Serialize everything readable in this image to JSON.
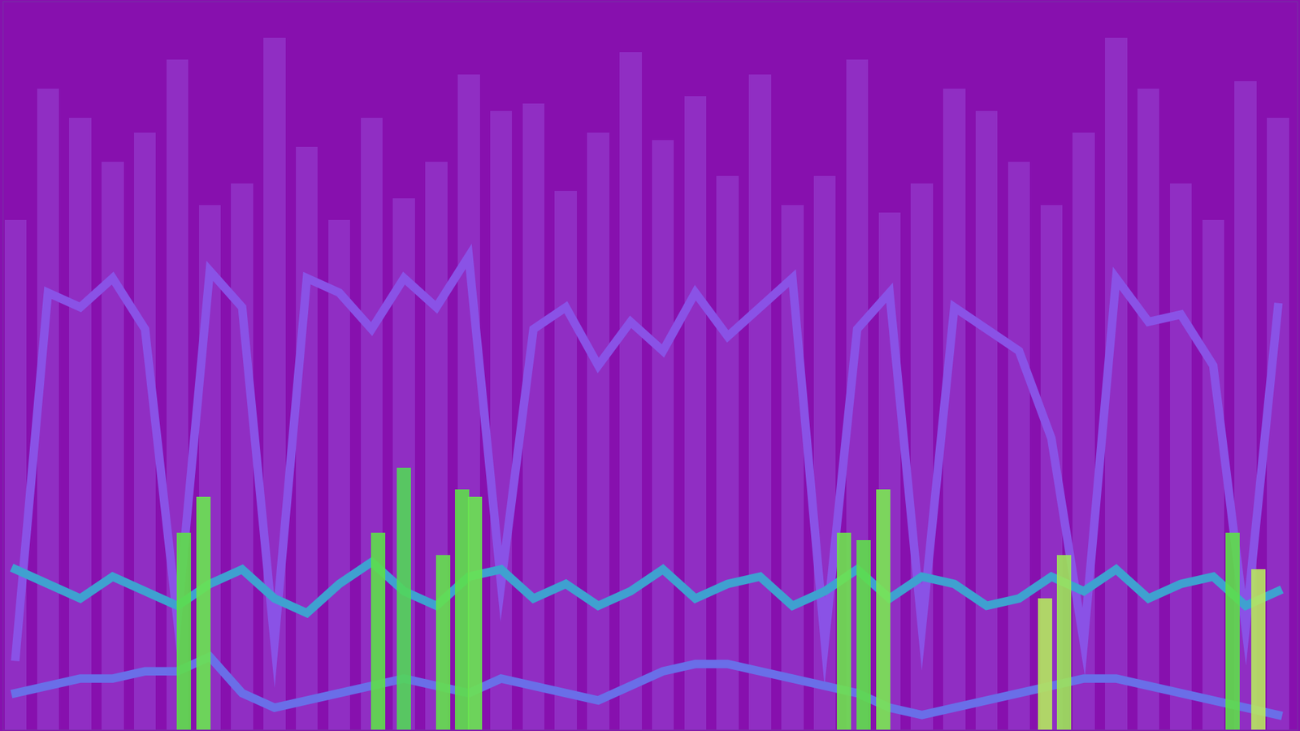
{
  "chart_data": {
    "type": "bar",
    "xlim": [
      0,
      100
    ],
    "ylim": [
      0,
      100
    ],
    "xticks": [],
    "yticks": [],
    "tick_labels": false,
    "grid": false,
    "series": [
      {
        "type": "bar",
        "color": "#9232c6",
        "x": [
          1,
          3.5,
          6,
          8.5,
          11,
          13.5,
          16,
          18.5,
          21,
          23.5,
          26,
          28.5,
          31,
          33.5,
          36,
          38.5,
          41,
          43.5,
          46,
          48.5,
          51,
          53.5,
          56,
          58.5,
          61,
          63.5,
          66,
          68.5,
          71,
          73.5,
          76,
          78.5,
          81,
          83.5,
          86,
          88.5,
          91,
          93.5,
          96,
          98.5
        ],
        "values": [
          70,
          88,
          84,
          78,
          82,
          92,
          72,
          75,
          95,
          80,
          70,
          84,
          73,
          78,
          90,
          85,
          86,
          74,
          82,
          93,
          81,
          87,
          76,
          90,
          72,
          76,
          92,
          71,
          75,
          88,
          85,
          78,
          72,
          82,
          95,
          88,
          75,
          70,
          89,
          84
        ]
      },
      {
        "type": "line",
        "color": "#8a52e6",
        "x": [
          1,
          3.5,
          6,
          8.5,
          11,
          13.5,
          16,
          18.5,
          21,
          23.5,
          26,
          28.5,
          31,
          33.5,
          36,
          38.5,
          41,
          43.5,
          46,
          48.5,
          51,
          53.5,
          56,
          58.5,
          61,
          63.5,
          66,
          68.5,
          71,
          73.5,
          76,
          78.5,
          81,
          83.5,
          86,
          88.5,
          91,
          93.5,
          96,
          98.5
        ],
        "values": [
          10,
          60,
          58,
          62,
          55,
          15,
          63,
          58,
          12,
          62,
          60,
          55,
          62,
          58,
          65,
          20,
          55,
          58,
          50,
          56,
          52,
          60,
          54,
          58,
          62,
          12,
          55,
          60,
          14,
          58,
          55,
          52,
          40,
          12,
          62,
          56,
          57,
          50,
          14,
          58
        ]
      },
      {
        "type": "bar",
        "colors": [
          "#5ee04a",
          "#6ae650",
          "#5ee04a",
          "#52d858",
          "#64e24c",
          "#5ee04a",
          "#6ae650",
          "#6ee44e",
          "#5ee04a",
          "#7ae852",
          "#b4e85e",
          "#9ee65a",
          "#5ee04a",
          "#b8e860"
        ],
        "x": [
          14,
          15.5,
          29,
          31,
          34,
          35.5,
          36.5,
          65,
          66.5,
          68,
          80.5,
          82,
          95,
          97
        ],
        "values": [
          27,
          32,
          27,
          36,
          24,
          33,
          32,
          27,
          26,
          33,
          18,
          24,
          27,
          22
        ]
      },
      {
        "type": "line",
        "color": "#3fa0d0",
        "x": [
          1,
          3.5,
          6,
          8.5,
          11,
          13.5,
          16,
          18.5,
          21,
          23.5,
          26,
          28.5,
          31,
          33.5,
          36,
          38.5,
          41,
          43.5,
          46,
          48.5,
          51,
          53.5,
          56,
          58.5,
          61,
          63.5,
          66,
          68.5,
          71,
          73.5,
          76,
          78.5,
          81,
          83.5,
          86,
          88.5,
          91,
          93.5,
          96,
          98.5
        ],
        "values": [
          22,
          20,
          18,
          21,
          19,
          17,
          20,
          22,
          18,
          16,
          20,
          23,
          19,
          17,
          21,
          22,
          18,
          20,
          17,
          19,
          22,
          18,
          20,
          21,
          17,
          19,
          22,
          18,
          21,
          20,
          17,
          18,
          21,
          19,
          22,
          18,
          20,
          21,
          17,
          19
        ]
      },
      {
        "type": "line",
        "color": "#6a6ee8",
        "x": [
          1,
          3.5,
          6,
          8.5,
          11,
          13.5,
          16,
          18.5,
          21,
          23.5,
          26,
          28.5,
          31,
          33.5,
          36,
          38.5,
          41,
          43.5,
          46,
          48.5,
          51,
          53.5,
          56,
          58.5,
          61,
          63.5,
          66,
          68.5,
          71,
          73.5,
          76,
          78.5,
          81,
          83.5,
          86,
          88.5,
          91,
          93.5,
          96,
          98.5
        ],
        "values": [
          5,
          6,
          7,
          7,
          8,
          8,
          10,
          5,
          3,
          4,
          5,
          6,
          7,
          6,
          5,
          7,
          6,
          5,
          4,
          6,
          8,
          9,
          9,
          8,
          7,
          6,
          5,
          3,
          2,
          3,
          4,
          5,
          6,
          7,
          7,
          6,
          5,
          4,
          3,
          2
        ]
      }
    ]
  }
}
